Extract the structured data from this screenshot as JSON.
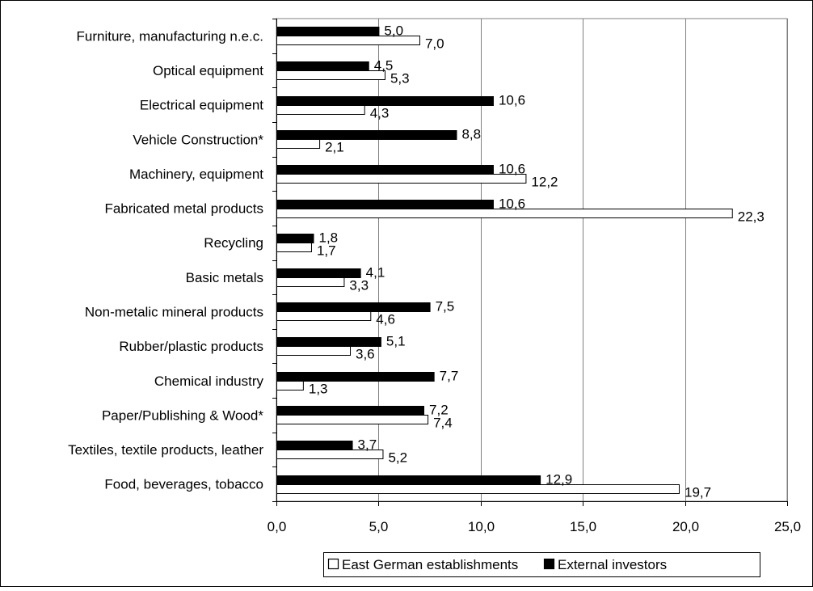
{
  "chart_data": {
    "type": "bar",
    "orientation": "horizontal",
    "title": "",
    "xlabel": "",
    "ylabel": "",
    "xlim": [
      0,
      25
    ],
    "x_ticks": [
      "0,0",
      "5,0",
      "10,0",
      "15,0",
      "20,0",
      "25,0"
    ],
    "x_tick_values": [
      0,
      5,
      10,
      15,
      20,
      25
    ],
    "grid": "vertical",
    "legend_position": "bottom-right",
    "categories": [
      "Furniture, manufacturing n.e.c.",
      "Optical equipment",
      "Electrical equipment",
      "Vehicle Construction*",
      "Machinery, equipment",
      "Fabricated metal products",
      "Recycling",
      "Basic metals",
      "Non-metalic mineral products",
      "Rubber/plastic products",
      "Chemical industry",
      "Paper/Publishing & Wood*",
      "Textiles, textile products, leather",
      "Food, beverages, tobacco"
    ],
    "series": [
      {
        "name": "External investors",
        "color": "#000000",
        "values": [
          5.0,
          4.5,
          10.6,
          8.8,
          10.6,
          10.6,
          1.8,
          4.1,
          7.5,
          5.1,
          7.7,
          7.2,
          3.7,
          12.9
        ],
        "labels": [
          "5,0",
          "4,5",
          "10,6",
          "8,8",
          "10,6",
          "10,6",
          "1,8",
          "4,1",
          "7,5",
          "5,1",
          "7,7",
          "7,2",
          "3,7",
          "12,9"
        ]
      },
      {
        "name": "East German establishments",
        "color": "#ffffff",
        "values": [
          7.0,
          5.3,
          4.3,
          2.1,
          12.2,
          22.3,
          1.7,
          3.3,
          4.6,
          3.6,
          1.3,
          7.4,
          5.2,
          19.7
        ],
        "labels": [
          "7,0",
          "5,3",
          "4,3",
          "2,1",
          "12,2",
          "22,3",
          "1,7",
          "3,3",
          "4,6",
          "3,6",
          "1,3",
          "7,4",
          "5,2",
          "19,7"
        ]
      }
    ],
    "legend": [
      "East German establishments",
      "External investors"
    ]
  }
}
